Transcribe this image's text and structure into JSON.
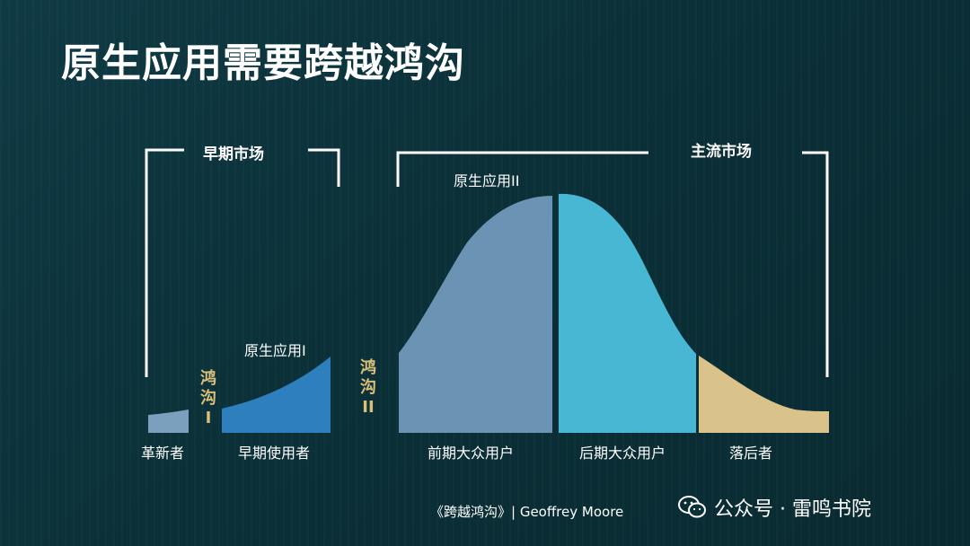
{
  "title": "原生应用需要跨越鸿沟",
  "markets": {
    "early": "早期市场",
    "mainstream": "主流市场"
  },
  "apps": {
    "app1": "原生应用I",
    "app2": "原生应用II"
  },
  "chasms": {
    "chasm1": [
      "鸿",
      "沟",
      "I"
    ],
    "chasm2": [
      "鸿",
      "沟",
      "II"
    ]
  },
  "segments": {
    "innovators": "革新者",
    "early_adopters": "早期使用者",
    "early_majority": "前期大众用户",
    "late_majority": "后期大众用户",
    "laggards": "落后者"
  },
  "credit": "《跨越鸿沟》| Geoffrey Moore",
  "brand": {
    "text": "公众号 · 雷鸣书院",
    "icon": "wechat-icon"
  },
  "colors": {
    "innovators": "#7aa0bd",
    "early_adopters": "#2d7fbd",
    "early_majority": "#6b93b3",
    "late_majority": "#48b7d3",
    "laggards": "#d9c38b",
    "chasm_text": "#d9bf7a"
  }
}
